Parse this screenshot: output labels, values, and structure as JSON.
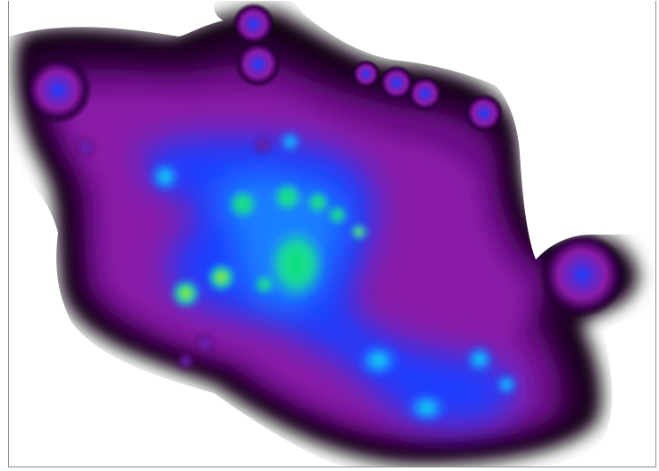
{
  "viewer": {
    "content": "density-heatmap",
    "colors": {
      "background": "#ffffff",
      "frame": "#8c8c8c",
      "level_outer": "#0a0010",
      "level_dark": "#2a0036",
      "level_purple": "#6a0a86",
      "level_magenta": "#8a1ca8",
      "level_violet": "#5a2ad0",
      "level_blue": "#1a3cff",
      "level_azure": "#1a90ff",
      "level_cyan": "#14e0e8",
      "level_green": "#10e070",
      "level_yellow": "#e8f020"
    }
  }
}
